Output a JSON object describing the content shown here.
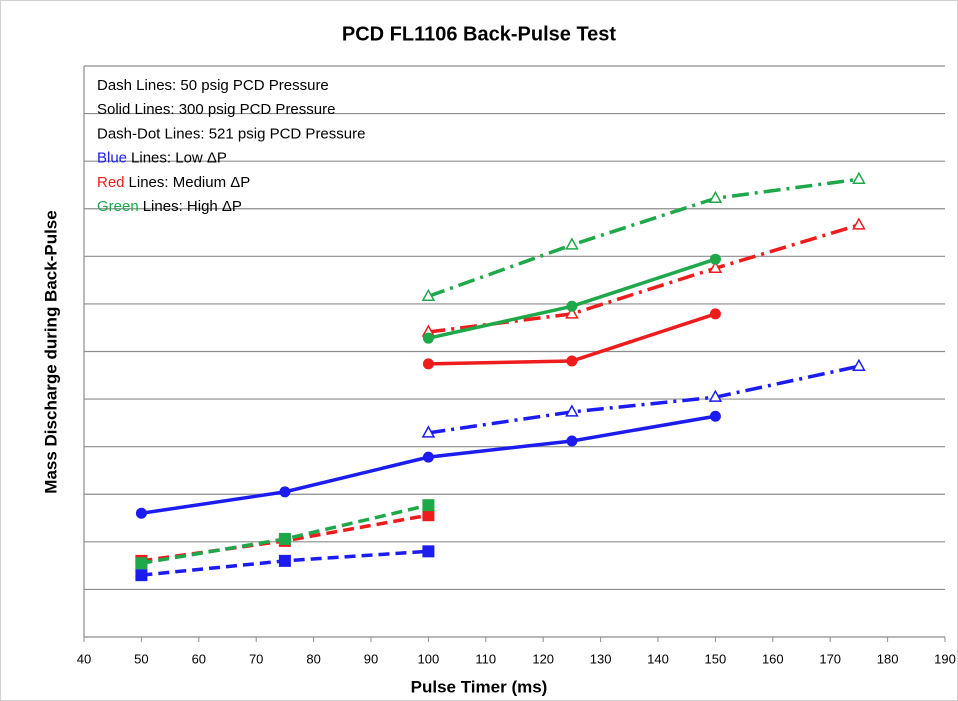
{
  "chart_data": {
    "type": "line",
    "title": "PCD FL1106 Back-Pulse Test",
    "x_label": "Pulse Timer (ms)",
    "y_label": "Mass Discharge during Back-Pulse",
    "xlim": [
      40,
      190
    ],
    "xticks": [
      40,
      50,
      60,
      70,
      80,
      90,
      100,
      110,
      120,
      130,
      140,
      150,
      160,
      170,
      180,
      190
    ],
    "ylim": [
      0,
      12
    ],
    "yticks": [
      1,
      2,
      3,
      4,
      5,
      6,
      7,
      8,
      9,
      10,
      11,
      12
    ],
    "grid": true,
    "annotations": [
      [
        {
          "text": "Dash Lines: 50 psig PCD Pressure"
        }
      ],
      [
        {
          "text": "Solid Lines: 300 psig PCD Pressure"
        }
      ],
      [
        {
          "text": "Dash-Dot Lines: 521 psig PCD Pressure"
        }
      ],
      [
        {
          "text": "Blue",
          "color": "#1c1cf0"
        },
        {
          "text": "Lines: Low ΔP"
        }
      ],
      [
        {
          "text": "Red",
          "color": "#ee1c1c"
        },
        {
          "text": "Lines: Medium ΔP"
        }
      ],
      [
        {
          "text": "Green",
          "color": "#1ea84a"
        },
        {
          "text": "Lines: High ΔP"
        }
      ]
    ],
    "series": [
      {
        "color": "#1c1cf0",
        "line_style": "solid",
        "marker": "circle",
        "x": [
          50,
          75,
          100,
          125,
          150
        ],
        "values": [
          2.6,
          3.05,
          3.78,
          4.12,
          4.64
        ]
      },
      {
        "color": "#1c1cf0",
        "line_style": "dash",
        "marker": "square",
        "x": [
          50,
          75,
          100
        ],
        "values": [
          1.3,
          1.6,
          1.8
        ]
      },
      {
        "color": "#1c1cf0",
        "line_style": "dashdot",
        "marker": "triangle",
        "x": [
          100,
          125,
          150,
          175
        ],
        "values": [
          4.29,
          4.73,
          5.04,
          5.69
        ]
      },
      {
        "color": "#ee1c1c",
        "line_style": "solid",
        "marker": "circle",
        "x": [
          100,
          125,
          150
        ],
        "values": [
          5.74,
          5.8,
          6.79
        ]
      },
      {
        "color": "#ee1c1c",
        "line_style": "dash",
        "marker": "square",
        "x": [
          50,
          75,
          100
        ],
        "values": [
          1.6,
          2.02,
          2.56
        ]
      },
      {
        "color": "#ee1c1c",
        "line_style": "dashdot",
        "marker": "triangle",
        "x": [
          100,
          125,
          150,
          175
        ],
        "values": [
          6.41,
          6.79,
          7.75,
          8.66
        ]
      },
      {
        "color": "#1ea84a",
        "line_style": "solid",
        "marker": "circle",
        "x": [
          100,
          125,
          150
        ],
        "values": [
          6.28,
          6.95,
          7.94
        ]
      },
      {
        "color": "#1ea84a",
        "line_style": "dash",
        "marker": "square",
        "x": [
          50,
          75,
          100
        ],
        "values": [
          1.55,
          2.06,
          2.77
        ]
      },
      {
        "color": "#1ea84a",
        "line_style": "dashdot",
        "marker": "triangle",
        "x": [
          100,
          125,
          150,
          175
        ],
        "values": [
          7.16,
          8.24,
          9.22,
          9.62
        ]
      }
    ]
  }
}
